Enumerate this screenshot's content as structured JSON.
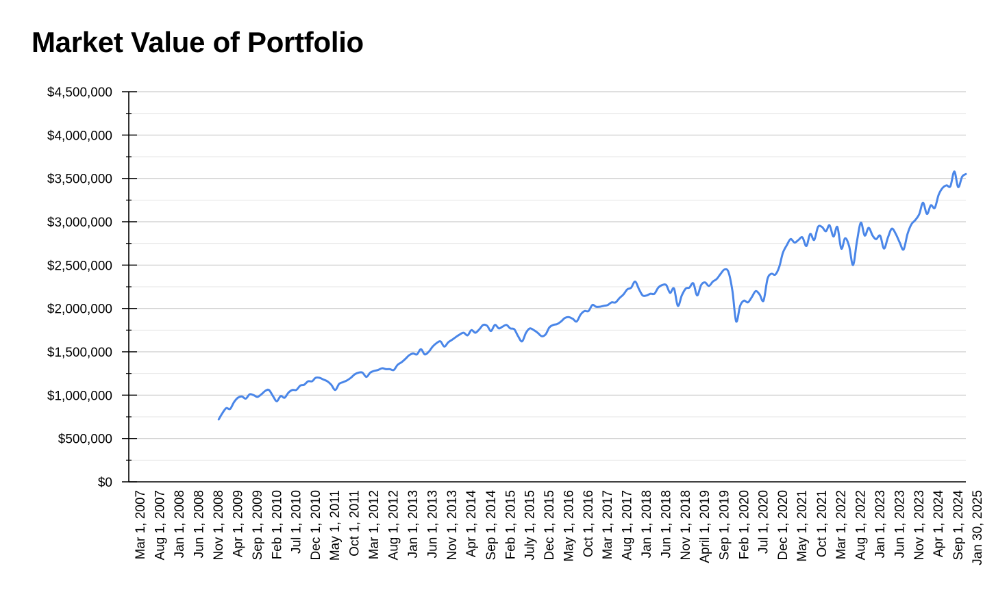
{
  "chart_data": {
    "type": "line",
    "title": "Market Value of Portfolio",
    "xlabel": "",
    "ylabel": "",
    "ylim": [
      0,
      4500000
    ],
    "grid": true,
    "y_tick_labels": [
      "$0",
      "$500,000",
      "$1,000,000",
      "$1,500,000",
      "$2,000,000",
      "$2,500,000",
      "$3,000,000",
      "$3,500,000",
      "$4,000,000",
      "$4,500,000"
    ],
    "x_tick_labels": [
      "Mar 1, 2007",
      "Aug 1, 2007",
      "Jan 1, 2008",
      "Jun 1, 2008",
      "Nov 1, 2008",
      "Apr 1, 2009",
      "Sep 1, 2009",
      "Feb 1, 2010",
      "Jul 1, 2010",
      "Dec 1, 2010",
      "May 1, 2011",
      "Oct 1, 2011",
      "Mar 1, 2012",
      "Aug 1, 2012",
      "Jan 1, 2013",
      "Jun 1, 2013",
      "Nov 1, 2013",
      "Apr 1, 2014",
      "Sep 1, 2014",
      "Feb 1, 2015",
      "July 1, 2015",
      "Dec 1, 2015",
      "May 1, 2016",
      "Oct 1, 2016",
      "Mar 1, 2017",
      "Aug 1, 2017",
      "Jan 1, 2018",
      "Jun 1, 2018",
      "Nov 1, 2018",
      "April 1, 2019",
      "Sep 1, 2019",
      "Feb 1, 2020",
      "Jul 1, 2020",
      "Dec 1, 2020",
      "May 1, 2021",
      "Oct 1, 2021",
      "Mar 1, 2022",
      "Aug 1, 2022",
      "Jan 1, 2023",
      "Jun 1, 2023",
      "Nov 1, 2023",
      "Apr 1, 2024",
      "Sep 1, 2024",
      "Jan 30, 2025"
    ],
    "series": [
      {
        "color": "#4a86e8",
        "points": [
          [
            "Feb 1, 2009",
            720000
          ],
          [
            "Mar 1, 2009",
            790000
          ],
          [
            "Apr 1, 2009",
            850000
          ],
          [
            "May 1, 2009",
            840000
          ],
          [
            "Jun 1, 2009",
            920000
          ],
          [
            "Jul 1, 2009",
            970000
          ],
          [
            "Aug 1, 2009",
            985000
          ],
          [
            "Sep 1, 2009",
            960000
          ],
          [
            "Oct 1, 2009",
            1010000
          ],
          [
            "Nov 1, 2009",
            1000000
          ],
          [
            "Dec 1, 2009",
            980000
          ],
          [
            "Jan 1, 2010",
            1010000
          ],
          [
            "Feb 1, 2010",
            1050000
          ],
          [
            "Mar 1, 2010",
            1060000
          ],
          [
            "Apr 1, 2010",
            990000
          ],
          [
            "May 1, 2010",
            930000
          ],
          [
            "Jun 1, 2010",
            990000
          ],
          [
            "Jul 1, 2010",
            970000
          ],
          [
            "Aug 1, 2010",
            1030000
          ],
          [
            "Sep 1, 2010",
            1060000
          ],
          [
            "Oct 1, 2010",
            1060000
          ],
          [
            "Nov 1, 2010",
            1110000
          ],
          [
            "Dec 1, 2010",
            1120000
          ],
          [
            "Jan 1, 2011",
            1160000
          ],
          [
            "Feb 1, 2011",
            1160000
          ],
          [
            "Mar 1, 2011",
            1200000
          ],
          [
            "Apr 1, 2011",
            1200000
          ],
          [
            "May 1, 2011",
            1180000
          ],
          [
            "Jun 1, 2011",
            1160000
          ],
          [
            "Jul 1, 2011",
            1120000
          ],
          [
            "Aug 1, 2011",
            1060000
          ],
          [
            "Sep 1, 2011",
            1130000
          ],
          [
            "Oct 1, 2011",
            1150000
          ],
          [
            "Nov 1, 2011",
            1170000
          ],
          [
            "Dec 1, 2011",
            1200000
          ],
          [
            "Jan 1, 2012",
            1240000
          ],
          [
            "Feb 1, 2012",
            1260000
          ],
          [
            "Mar 1, 2012",
            1260000
          ],
          [
            "Apr 1, 2012",
            1210000
          ],
          [
            "May 1, 2012",
            1260000
          ],
          [
            "Jun 1, 2012",
            1280000
          ],
          [
            "Jul 1, 2012",
            1290000
          ],
          [
            "Aug 1, 2012",
            1310000
          ],
          [
            "Sep 1, 2012",
            1300000
          ],
          [
            "Oct 1, 2012",
            1300000
          ],
          [
            "Nov 1, 2012",
            1290000
          ],
          [
            "Dec 1, 2012",
            1350000
          ],
          [
            "Jan 1, 2013",
            1380000
          ],
          [
            "Feb 1, 2013",
            1420000
          ],
          [
            "Mar 1, 2013",
            1460000
          ],
          [
            "Apr 1, 2013",
            1480000
          ],
          [
            "May 1, 2013",
            1470000
          ],
          [
            "Jun 1, 2013",
            1530000
          ],
          [
            "Jul 1, 2013",
            1470000
          ],
          [
            "Aug 1, 2013",
            1500000
          ],
          [
            "Sep 1, 2013",
            1560000
          ],
          [
            "Oct 1, 2013",
            1600000
          ],
          [
            "Nov 1, 2013",
            1620000
          ],
          [
            "Dec 1, 2013",
            1560000
          ],
          [
            "Jan 1, 2014",
            1610000
          ],
          [
            "Feb 1, 2014",
            1640000
          ],
          [
            "Mar 1, 2014",
            1670000
          ],
          [
            "Apr 1, 2014",
            1700000
          ],
          [
            "May 1, 2014",
            1720000
          ],
          [
            "Jun 1, 2014",
            1690000
          ],
          [
            "Jul 1, 2014",
            1750000
          ],
          [
            "Aug 1, 2014",
            1720000
          ],
          [
            "Sep 1, 2014",
            1760000
          ],
          [
            "Oct 1, 2014",
            1810000
          ],
          [
            "Nov 1, 2014",
            1800000
          ],
          [
            "Dec 1, 2014",
            1740000
          ],
          [
            "Jan 1, 2015",
            1810000
          ],
          [
            "Feb 1, 2015",
            1770000
          ],
          [
            "Mar 1, 2015",
            1790000
          ],
          [
            "Apr 1, 2015",
            1810000
          ],
          [
            "May 1, 2015",
            1770000
          ],
          [
            "Jun 1, 2015",
            1760000
          ],
          [
            "Jul 1, 2015",
            1680000
          ],
          [
            "Aug 1, 2015",
            1620000
          ],
          [
            "Sep 1, 2015",
            1720000
          ],
          [
            "Oct 1, 2015",
            1770000
          ],
          [
            "Nov 1, 2015",
            1750000
          ],
          [
            "Dec 1, 2015",
            1720000
          ],
          [
            "Jan 1, 2016",
            1680000
          ],
          [
            "Feb 1, 2016",
            1700000
          ],
          [
            "Mar 1, 2016",
            1780000
          ],
          [
            "Apr 1, 2016",
            1810000
          ],
          [
            "May 1, 2016",
            1820000
          ],
          [
            "Jun 1, 2016",
            1850000
          ],
          [
            "Jul 1, 2016",
            1890000
          ],
          [
            "Aug 1, 2016",
            1900000
          ],
          [
            "Sep 1, 2016",
            1880000
          ],
          [
            "Oct 1, 2016",
            1850000
          ],
          [
            "Nov 1, 2016",
            1930000
          ],
          [
            "Dec 1, 2016",
            1970000
          ],
          [
            "Jan 1, 2017",
            1970000
          ],
          [
            "Feb 1, 2017",
            2040000
          ],
          [
            "Mar 1, 2017",
            2020000
          ],
          [
            "Apr 1, 2017",
            2020000
          ],
          [
            "May 1, 2017",
            2030000
          ],
          [
            "Jun 1, 2017",
            2040000
          ],
          [
            "Jul 1, 2017",
            2070000
          ],
          [
            "Aug 1, 2017",
            2070000
          ],
          [
            "Sep 1, 2017",
            2120000
          ],
          [
            "Oct 1, 2017",
            2160000
          ],
          [
            "Nov 1, 2017",
            2220000
          ],
          [
            "Dec 1, 2017",
            2240000
          ],
          [
            "Jan 1, 2018",
            2310000
          ],
          [
            "Feb 1, 2018",
            2220000
          ],
          [
            "Mar 1, 2018",
            2150000
          ],
          [
            "Apr 1, 2018",
            2150000
          ],
          [
            "May 1, 2018",
            2170000
          ],
          [
            "Jun 1, 2018",
            2170000
          ],
          [
            "Jul 1, 2018",
            2240000
          ],
          [
            "Aug 1, 2018",
            2270000
          ],
          [
            "Sep 1, 2018",
            2270000
          ],
          [
            "Oct 1, 2018",
            2180000
          ],
          [
            "Nov 1, 2018",
            2230000
          ],
          [
            "Dec 1, 2018",
            2030000
          ],
          [
            "Jan 1, 2019",
            2150000
          ],
          [
            "Feb 1, 2019",
            2230000
          ],
          [
            "Mar 1, 2019",
            2240000
          ],
          [
            "Apr 1, 2019",
            2290000
          ],
          [
            "May 1, 2019",
            2150000
          ],
          [
            "Jun 1, 2019",
            2270000
          ],
          [
            "Jul 1, 2019",
            2300000
          ],
          [
            "Aug 1, 2019",
            2260000
          ],
          [
            "Sep 1, 2019",
            2310000
          ],
          [
            "Oct 1, 2019",
            2340000
          ],
          [
            "Nov 1, 2019",
            2400000
          ],
          [
            "Dec 1, 2019",
            2450000
          ],
          [
            "Jan 1, 2020",
            2420000
          ],
          [
            "Feb 1, 2020",
            2200000
          ],
          [
            "Mar 1, 2020",
            1850000
          ],
          [
            "Apr 1, 2020",
            2030000
          ],
          [
            "May 1, 2020",
            2090000
          ],
          [
            "Jun 1, 2020",
            2070000
          ],
          [
            "Jul 1, 2020",
            2130000
          ],
          [
            "Aug 1, 2020",
            2200000
          ],
          [
            "Sep 1, 2020",
            2160000
          ],
          [
            "Oct 1, 2020",
            2090000
          ],
          [
            "Nov 1, 2020",
            2340000
          ],
          [
            "Dec 1, 2020",
            2400000
          ],
          [
            "Jan 1, 2021",
            2390000
          ],
          [
            "Feb 1, 2021",
            2480000
          ],
          [
            "Mar 1, 2021",
            2640000
          ],
          [
            "Apr 1, 2021",
            2730000
          ],
          [
            "May 1, 2021",
            2800000
          ],
          [
            "Jun 1, 2021",
            2760000
          ],
          [
            "Jul 1, 2021",
            2790000
          ],
          [
            "Aug 1, 2021",
            2820000
          ],
          [
            "Sep 1, 2021",
            2720000
          ],
          [
            "Oct 1, 2021",
            2860000
          ],
          [
            "Nov 1, 2021",
            2790000
          ],
          [
            "Dec 1, 2021",
            2940000
          ],
          [
            "Jan 1, 2022",
            2940000
          ],
          [
            "Feb 1, 2022",
            2890000
          ],
          [
            "Mar 1, 2022",
            2960000
          ],
          [
            "Apr 1, 2022",
            2830000
          ],
          [
            "May 1, 2022",
            2940000
          ],
          [
            "Jun 1, 2022",
            2690000
          ],
          [
            "Jul 1, 2022",
            2810000
          ],
          [
            "Aug 1, 2022",
            2720000
          ],
          [
            "Sep 1, 2022",
            2500000
          ],
          [
            "Oct 1, 2022",
            2770000
          ],
          [
            "Nov 1, 2022",
            2990000
          ],
          [
            "Dec 1, 2022",
            2840000
          ],
          [
            "Jan 1, 2023",
            2930000
          ],
          [
            "Feb 1, 2023",
            2840000
          ],
          [
            "Mar 1, 2023",
            2800000
          ],
          [
            "Apr 1, 2023",
            2840000
          ],
          [
            "May 1, 2023",
            2690000
          ],
          [
            "Jun 1, 2023",
            2820000
          ],
          [
            "Jul 1, 2023",
            2920000
          ],
          [
            "Aug 1, 2023",
            2860000
          ],
          [
            "Sep 1, 2023",
            2760000
          ],
          [
            "Oct 1, 2023",
            2680000
          ],
          [
            "Nov 1, 2023",
            2860000
          ],
          [
            "Dec 1, 2023",
            2970000
          ],
          [
            "Jan 1, 2024",
            3020000
          ],
          [
            "Feb 1, 2024",
            3090000
          ],
          [
            "Mar 1, 2024",
            3220000
          ],
          [
            "Apr 1, 2024",
            3090000
          ],
          [
            "May 1, 2024",
            3190000
          ],
          [
            "Jun 1, 2024",
            3160000
          ],
          [
            "Jul 1, 2024",
            3310000
          ],
          [
            "Aug 1, 2024",
            3390000
          ],
          [
            "Sep 1, 2024",
            3420000
          ],
          [
            "Oct 1, 2024",
            3410000
          ],
          [
            "Nov 1, 2024",
            3580000
          ],
          [
            "Dec 1, 2024",
            3400000
          ],
          [
            "Jan 1, 2025",
            3520000
          ],
          [
            "Jan 30, 2025",
            3550000
          ]
        ]
      }
    ]
  }
}
